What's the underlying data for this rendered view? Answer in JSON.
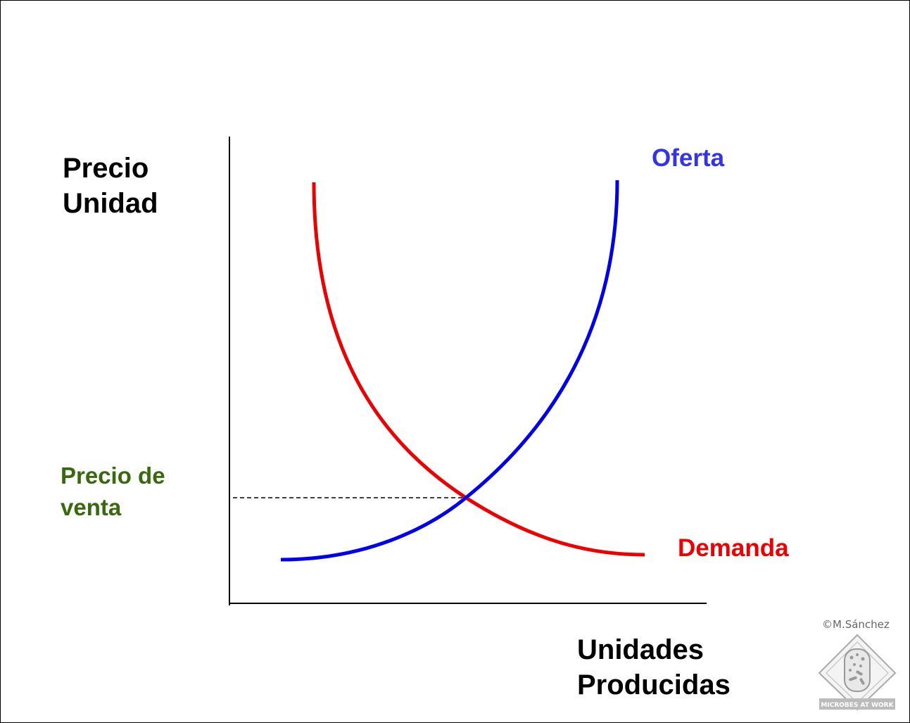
{
  "axes": {
    "y_label_line1": "Precio",
    "y_label_line2": "Unidad",
    "x_label_line1": "Unidades",
    "x_label_line2": "Producidas"
  },
  "equilibrium": {
    "price_label_line1": "Precio de",
    "price_label_line2": "venta"
  },
  "curves": {
    "supply": {
      "name": "Oferta",
      "color": "#0000ee"
    },
    "demand": {
      "name": "Demanda",
      "color": "#ee0000"
    }
  },
  "credit": {
    "copyright": "©M.Sánchez",
    "logo_text": "MICROBES AT WORK"
  },
  "colors": {
    "price_label": "#376a0c",
    "axis": "#000000",
    "guide_line": "#000000"
  }
}
